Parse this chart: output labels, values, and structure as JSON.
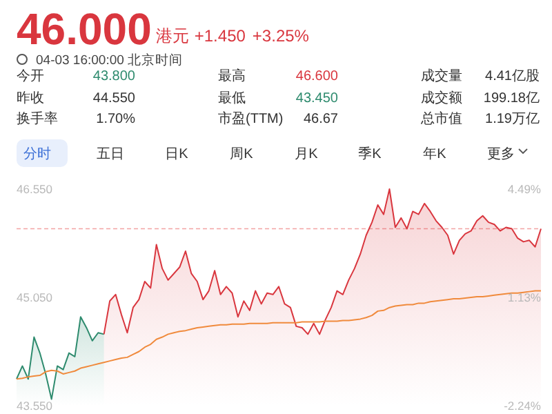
{
  "chart_data": [
    {
      "type": "other",
      "title": "46.000",
      "subtitle": "04-03 16:00:00 北京时间",
      "annotations": [
        "港元",
        "+1.450",
        "+3.25%",
        "今开",
        "43.800",
        "最高",
        "46.600",
        "成交量",
        "4.41亿股",
        "昨收",
        "44.550",
        "最低",
        "43.450",
        "成交额",
        "199.18亿",
        "换手率",
        "1.70%",
        "市盈(TTM)",
        "46.67",
        "总市值",
        "1.19万亿",
        "分时",
        "五日",
        "日K",
        "周K",
        "月K",
        "季K",
        "年K",
        "更多"
      ],
      "colors": [
        "#d9363e",
        "#d9363e",
        "#d9363e",
        "#333333",
        "#2e8b6e",
        "#333333",
        "#d9363e",
        "#333333",
        "#333333",
        "#333333",
        "#333333",
        "#333333",
        "#2e8b6e",
        "#333333",
        "#333333",
        "#333333",
        "#333333",
        "#333333",
        "#333333",
        "#333333",
        "#333333",
        "#3b6fd6",
        "#333333",
        "#333333",
        "#333333",
        "#333333",
        "#333333",
        "#333333",
        "#333333"
      ]
    },
    {
      "type": "area",
      "ylim": [
        43.55,
        46.55
      ],
      "categories": [
        null,
        null,
        null,
        null,
        null,
        null,
        null,
        null,
        null,
        null,
        null,
        null,
        null,
        null,
        null,
        null,
        null,
        null,
        null,
        null,
        null,
        null,
        null,
        null,
        null,
        null,
        null,
        null,
        null,
        null,
        null,
        null,
        null,
        null,
        null,
        null,
        null,
        null,
        null,
        null,
        null,
        null,
        null,
        null,
        null,
        null,
        null,
        null,
        null,
        null,
        null,
        null,
        null,
        null,
        null,
        null,
        null,
        null,
        null,
        null,
        null,
        null,
        null,
        null,
        null,
        null,
        null,
        null,
        null,
        null,
        null,
        null,
        null,
        null,
        null,
        null,
        null,
        null,
        null,
        null,
        null,
        null,
        null,
        null,
        null,
        null,
        null,
        null,
        null,
        null,
        null
      ],
      "yticks": [
        {
          "value": 46.55,
          "label": "46.550"
        },
        {
          "value": 45.05,
          "label": "45.050"
        },
        {
          "value": 43.55,
          "label": "43.550"
        }
      ],
      "y2lim": [
        -2.24,
        4.49
      ],
      "y2ticks": [
        {
          "value": 4.49,
          "label": "4.49%"
        },
        {
          "value": 1.13,
          "label": "1.13%"
        },
        {
          "value": -2.24,
          "label": "-2.24%"
        }
      ],
      "tick_labels": "y",
      "ref_lines": [
        {
          "axis": "y",
          "value": 46.0,
          "color": "#f2a3a3",
          "line_style": "dashed"
        }
      ],
      "series": [
        {
          "type": "area",
          "color": "#2e8b6e",
          "values": [
            43.92,
            44.1,
            43.92,
            44.5,
            44.28,
            43.99,
            43.64,
            44.1,
            44.05,
            44.28,
            44.23,
            44.78,
            44.63,
            44.45,
            44.56,
            44.54,
            null,
            null,
            null,
            null,
            null,
            null,
            null,
            null,
            null,
            null,
            null,
            null,
            null,
            null,
            null,
            null,
            null,
            null,
            null,
            null,
            null,
            null,
            null,
            null,
            null,
            null,
            null,
            null,
            null,
            null,
            null,
            null,
            null,
            null,
            null,
            null,
            null,
            null,
            null,
            null,
            null,
            null,
            null,
            null,
            null,
            null,
            null,
            null,
            null,
            null,
            null,
            null,
            null,
            null,
            null,
            null,
            null,
            null,
            null,
            null,
            null,
            null,
            null,
            null,
            null,
            null,
            null,
            null,
            null,
            null,
            null,
            null,
            null,
            null,
            null
          ]
        },
        {
          "type": "area",
          "color": "#d9363e",
          "values": [
            null,
            null,
            null,
            null,
            null,
            null,
            null,
            null,
            null,
            null,
            null,
            null,
            null,
            null,
            null,
            44.54,
            45.0,
            45.09,
            44.81,
            44.56,
            44.91,
            45.02,
            45.27,
            45.18,
            45.78,
            45.45,
            45.29,
            45.38,
            45.47,
            45.69,
            45.38,
            45.27,
            45.02,
            45.14,
            45.42,
            45.09,
            45.2,
            45.11,
            44.78,
            45.0,
            44.87,
            45.14,
            44.96,
            45.11,
            45.09,
            45.2,
            44.96,
            44.91,
            44.65,
            44.63,
            44.54,
            44.69,
            44.54,
            44.74,
            44.91,
            45.14,
            45.09,
            45.29,
            45.45,
            45.65,
            45.91,
            46.09,
            46.33,
            46.2,
            46.55,
            46.02,
            46.15,
            46.0,
            46.24,
            46.2,
            46.35,
            46.24,
            46.11,
            46.02,
            45.91,
            45.65,
            45.84,
            45.93,
            45.97,
            46.11,
            46.18,
            46.09,
            46.06,
            45.97,
            46.02,
            46.0,
            45.87,
            45.82,
            45.84,
            45.75,
            46.0
          ]
        },
        {
          "type": "line",
          "color": "#f08a3c",
          "values": [
            43.92,
            43.93,
            43.95,
            43.96,
            43.97,
            44.02,
            44.04,
            44.03,
            43.99,
            44.01,
            44.03,
            44.07,
            44.09,
            44.11,
            44.13,
            44.15,
            44.17,
            44.19,
            44.21,
            44.22,
            44.26,
            44.3,
            44.36,
            44.4,
            44.47,
            44.5,
            44.54,
            44.56,
            44.58,
            44.59,
            44.61,
            44.63,
            44.64,
            44.65,
            44.66,
            44.67,
            44.67,
            44.68,
            44.68,
            44.68,
            44.69,
            44.69,
            44.69,
            44.69,
            44.7,
            44.7,
            44.7,
            44.7,
            44.7,
            44.71,
            44.71,
            44.71,
            44.71,
            44.72,
            44.72,
            44.72,
            44.73,
            44.73,
            44.74,
            44.75,
            44.77,
            44.8,
            44.86,
            44.87,
            44.91,
            44.93,
            44.94,
            44.95,
            44.95,
            44.97,
            44.97,
            44.99,
            45.0,
            45.01,
            45.02,
            45.03,
            45.03,
            45.04,
            45.05,
            45.06,
            45.06,
            45.07,
            45.08,
            45.09,
            45.1,
            45.11,
            45.11,
            45.12,
            45.13,
            45.14,
            45.14
          ]
        }
      ]
    }
  ]
}
